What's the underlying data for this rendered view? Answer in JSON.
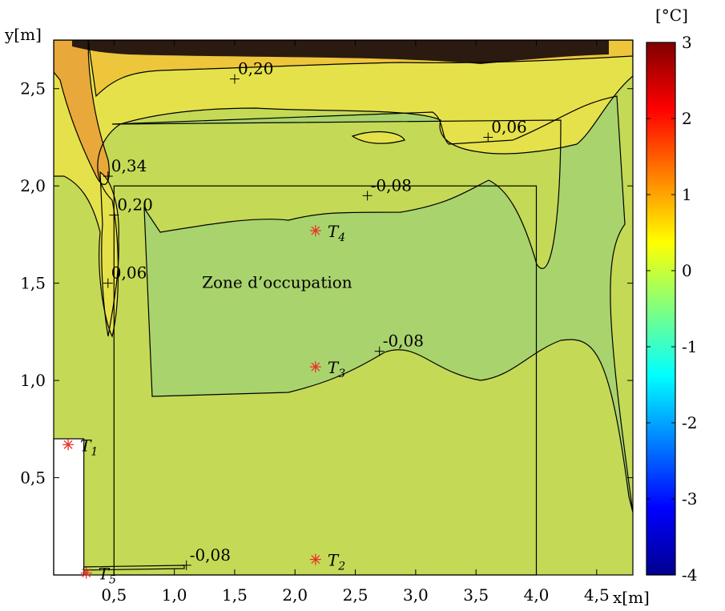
{
  "chart_data": {
    "type": "heatmap",
    "title": "",
    "xlabel": "x[m]",
    "ylabel": "y[m]",
    "xlim": [
      0,
      4.8
    ],
    "ylim": [
      0,
      2.75
    ],
    "grid": false,
    "x_ticks": [
      {
        "value": 0.5,
        "label": "0,5"
      },
      {
        "value": 1.0,
        "label": "1,0"
      },
      {
        "value": 1.5,
        "label": "1,5"
      },
      {
        "value": 2.0,
        "label": "2,0"
      },
      {
        "value": 2.5,
        "label": "2,5"
      },
      {
        "value": 3.0,
        "label": "3,0"
      },
      {
        "value": 3.5,
        "label": "3,5"
      },
      {
        "value": 4.0,
        "label": "4,0"
      },
      {
        "value": 4.5,
        "label": "4,5"
      }
    ],
    "y_ticks": [
      {
        "value": 0.5,
        "label": "0,5"
      },
      {
        "value": 1.0,
        "label": "1,0"
      },
      {
        "value": 1.5,
        "label": "1,5"
      },
      {
        "value": 2.0,
        "label": "2,0"
      },
      {
        "value": 2.5,
        "label": "2,5"
      }
    ],
    "colorbar": {
      "unit": "[°C]",
      "range": [
        -4,
        3
      ],
      "ticks": [
        {
          "value": 3,
          "label": "3"
        },
        {
          "value": 2,
          "label": "2"
        },
        {
          "value": 1,
          "label": "1"
        },
        {
          "value": 0,
          "label": "0"
        },
        {
          "value": -1,
          "label": "-1"
        },
        {
          "value": -2,
          "label": "-2"
        },
        {
          "value": -3,
          "label": "-3"
        },
        {
          "value": -4,
          "label": "-4"
        }
      ],
      "colors": [
        "#00008f",
        "#0000ff",
        "#0080ff",
        "#00ffff",
        "#80ff80",
        "#ffff00",
        "#ff8000",
        "#ff0000",
        "#800000"
      ]
    },
    "occupation_zone": {
      "label": "Zone d’occupation",
      "x": [
        0.5,
        4.0
      ],
      "y": [
        0,
        2.0
      ]
    },
    "obstacle": {
      "x": [
        0,
        0.25
      ],
      "y": [
        0,
        0.7
      ]
    },
    "contour_labels": [
      {
        "text": "0,20",
        "x": 1.5,
        "y": 2.55
      },
      {
        "text": "0,06",
        "x": 3.6,
        "y": 2.25
      },
      {
        "text": "0,34",
        "x": 0.45,
        "y": 2.05
      },
      {
        "text": "0,20",
        "x": 0.5,
        "y": 1.85
      },
      {
        "text": "-0,08",
        "x": 2.6,
        "y": 1.95
      },
      {
        "text": "0,06",
        "x": 0.45,
        "y": 1.5
      },
      {
        "text": "-0,08",
        "x": 2.7,
        "y": 1.15
      },
      {
        "text": "-0,08",
        "x": 1.1,
        "y": 0.05
      }
    ],
    "sensors": [
      {
        "name": "T",
        "sub": "1",
        "x": 0.12,
        "y": 0.67
      },
      {
        "name": "T",
        "sub": "2",
        "x": 2.17,
        "y": 0.08
      },
      {
        "name": "T",
        "sub": "3",
        "x": 2.17,
        "y": 1.07
      },
      {
        "name": "T",
        "sub": "4",
        "x": 2.17,
        "y": 1.77
      },
      {
        "name": "T",
        "sub": "5",
        "x": 0.27,
        "y": 0.01
      }
    ],
    "field_colors": {
      "base": "#c4d956",
      "cool": "#a9d36d",
      "warm": "#e5e14a",
      "hot": "#eec63b",
      "hotter": "#e9a83a",
      "dark": "#2b1a10"
    }
  }
}
